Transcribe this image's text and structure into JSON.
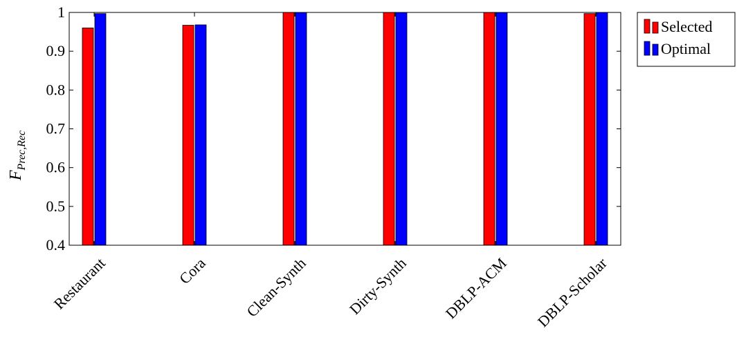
{
  "chart_data": {
    "type": "bar",
    "title": "",
    "xlabel": "",
    "ylabel_main": "F",
    "ylabel_sub": "Prec,Rec",
    "ylim": [
      0.4,
      1.0
    ],
    "yticks": [
      0.4,
      0.5,
      0.6,
      0.7,
      0.8,
      0.9,
      1
    ],
    "ytick_labels": [
      "0.4",
      "0.5",
      "0.6",
      "0.7",
      "0.8",
      "0.9",
      "1"
    ],
    "categories": [
      "Restaurant",
      "Cora",
      "Clean-Synth",
      "Dirty-Synth",
      "DBLP-ACM",
      "DBLP-Scholar"
    ],
    "series": [
      {
        "name": "Selected",
        "color": "#ff0000",
        "values": [
          0.96,
          0.967,
          1.0,
          1.0,
          1.0,
          0.997
        ]
      },
      {
        "name": "Optimal",
        "color": "#0000ff",
        "values": [
          0.997,
          0.968,
          1.0,
          1.0,
          1.0,
          1.0
        ]
      }
    ],
    "grid": false,
    "legend_position": "outside-top-right"
  }
}
